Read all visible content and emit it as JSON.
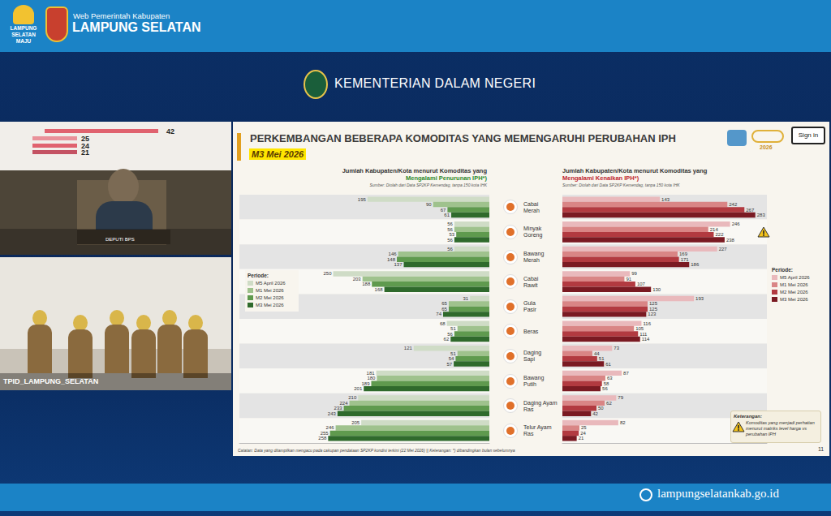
{
  "page": {
    "header": {
      "logo_text": [
        "LAMPUNG",
        "SELATAN",
        "MAJU"
      ],
      "subtitle": "Web Pemerintah Kabupaten",
      "title": "LAMPUNG SELATAN"
    },
    "ministry": "KEMENTERIAN DALAM NEGERI",
    "video": {
      "overlay_numbers": [
        "42",
        "25",
        "24",
        "21"
      ],
      "top_label": "DEPUTI BPS",
      "bottom_label": "TPID_LAMPUNG_SELATAN"
    },
    "slide": {
      "title": "PERKEMBANGAN BEBERAPA KOMODITAS YANG MEMENGARUHI PERUBAHAN IPH",
      "period": "M3 Mei 2026",
      "sign_in": "Sign in",
      "logo_year": "2026",
      "legend_title": "Periode:",
      "note_title": "Keterangan:",
      "note_text": "Komoditas yang menjadi perhatian menurut matriks level harga vs perubahan IPH",
      "footer": "Catatan: Data yang ditampilkan mengacu pada cakupan pendataan SP2KP kondisi terkini (22 Mei 2026) || Keterangan: *) dibandingkan bulan sebelumnya",
      "page_number": "11"
    },
    "footer_url": "lampungselatankab.go.id"
  },
  "chart_data": [
    {
      "type": "bar",
      "title": "Jumlah Kabupaten/Kota menurut Komoditas yang",
      "subtitle": "Mengalami Penurunan IPH*)",
      "annotations": [
        "Sumber: Diolah dari Data SP2KP Kemendag, tanpa 150 kota IHK"
      ],
      "orientation": "horizontal",
      "data_labels": true,
      "tick_labels": false,
      "grid": false,
      "legend": "left",
      "categories": [
        "Cabai Merah",
        "Minyak Goreng",
        "Bawang Merah",
        "Cabai Rawit",
        "Gula Pasir",
        "Beras",
        "Daging Sapi",
        "Bawang Putih",
        "Daging Ayam Ras",
        "Telur Ayam Ras"
      ],
      "xlim": [
        0,
        400
      ],
      "series": [
        {
          "name": "M5 April 2026",
          "color": "#cfdcc6",
          "values": [
            195,
            56,
            56,
            250,
            31,
            68,
            121,
            181,
            210,
            205
          ]
        },
        {
          "name": "M1 Mei 2026",
          "color": "#9fc28d",
          "values": [
            90,
            56,
            146,
            203,
            65,
            51,
            51,
            180,
            224,
            246
          ]
        },
        {
          "name": "M2 Mei 2026",
          "color": "#5f9a4e",
          "values": [
            67,
            53,
            148,
            188,
            65,
            56,
            54,
            189,
            233,
            255
          ]
        },
        {
          "name": "M3 Mei 2026",
          "color": "#2f6a2c",
          "values": [
            61,
            56,
            137,
            168,
            74,
            62,
            57,
            201,
            243,
            258
          ]
        }
      ]
    },
    {
      "type": "bar",
      "title": "Jumlah Kabupaten/Kota menurut Komoditas yang",
      "subtitle": "Mengalami Kenaikan IPH*)",
      "annotations": [
        "Sumber: Diolah dari Data SP2KP Kemendag, tanpa 150 kota IHK"
      ],
      "orientation": "horizontal",
      "data_labels": true,
      "tick_labels": false,
      "grid": false,
      "legend": "right",
      "categories": [
        "Cabai Merah",
        "Minyak Goreng",
        "Bawang Merah",
        "Cabai Rawit",
        "Gula Pasir",
        "Beras",
        "Daging Sapi",
        "Bawang Putih",
        "Daging Ayam Ras",
        "Telur Ayam Ras"
      ],
      "xlim": [
        0,
        300
      ],
      "series": [
        {
          "name": "M5 April 2026",
          "color": "#e9b9bc",
          "values": [
            143,
            246,
            227,
            99,
            193,
            116,
            73,
            87,
            79,
            82
          ]
        },
        {
          "name": "M1 Mei 2026",
          "color": "#d98585",
          "values": [
            242,
            214,
            169,
            91,
            125,
            105,
            44,
            63,
            62,
            25
          ]
        },
        {
          "name": "M2 Mei 2026",
          "color": "#b23a40",
          "values": [
            267,
            222,
            171,
            107,
            125,
            111,
            51,
            58,
            50,
            24
          ]
        },
        {
          "name": "M3 Mei 2026",
          "color": "#7a1a22",
          "values": [
            283,
            238,
            186,
            130,
            123,
            114,
            61,
            56,
            42,
            21
          ]
        }
      ]
    }
  ]
}
